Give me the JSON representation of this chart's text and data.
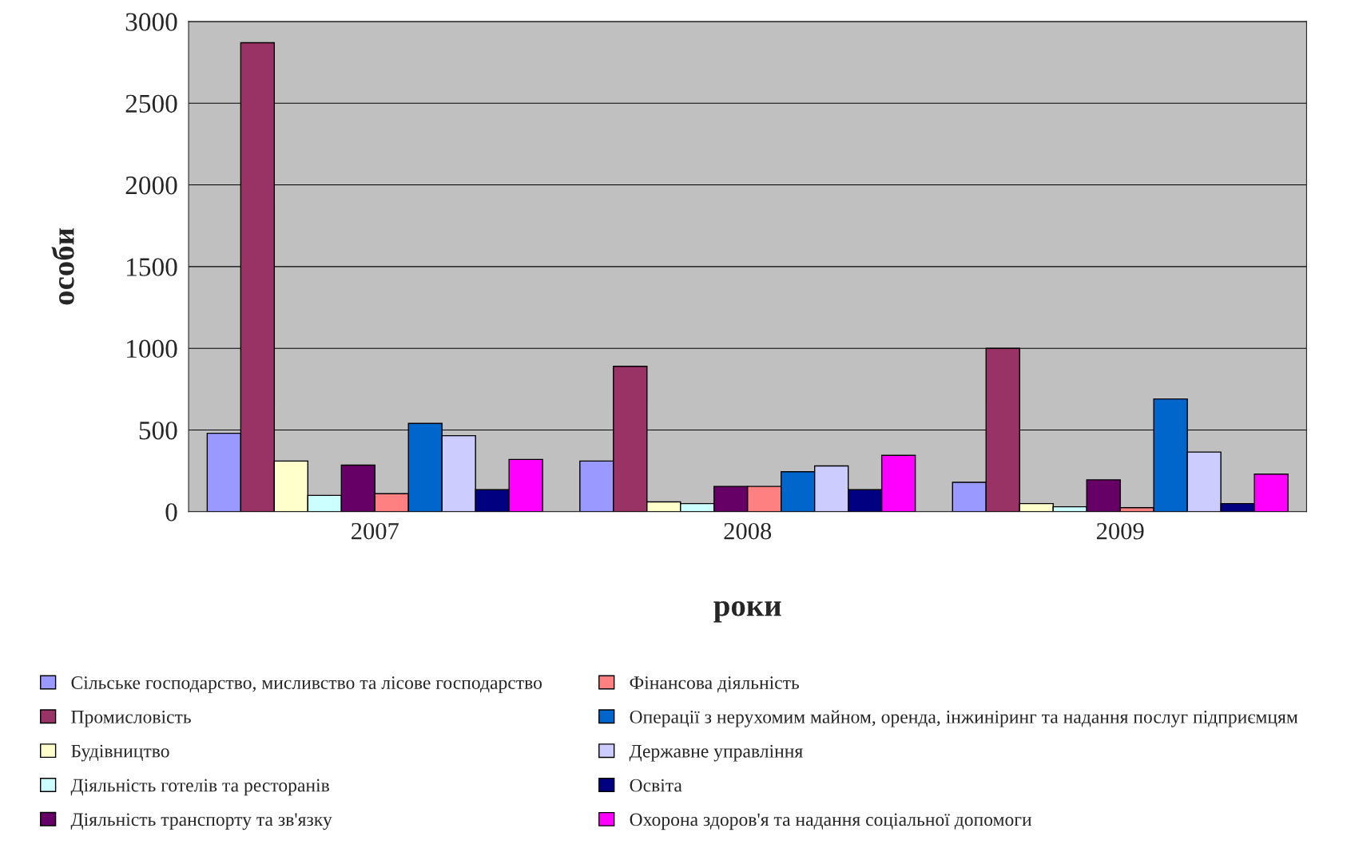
{
  "chart_data": {
    "type": "bar",
    "xlabel": "роки",
    "ylabel": "особи",
    "categories": [
      "2007",
      "2008",
      "2009"
    ],
    "series": [
      {
        "name": "Сільське господарство, мисливство та лісове господарство",
        "color": "#9999ff",
        "values": [
          480,
          310,
          180
        ]
      },
      {
        "name": "Промисловість",
        "color": "#993366",
        "values": [
          2870,
          890,
          1000
        ]
      },
      {
        "name": "Будівництво",
        "color": "#ffffcc",
        "values": [
          310,
          60,
          50
        ]
      },
      {
        "name": "Діяльність готелів та ресторанів",
        "color": "#ccffff",
        "values": [
          100,
          50,
          30
        ]
      },
      {
        "name": "Діяльність транспорту та зв'язку",
        "color": "#660066",
        "values": [
          285,
          155,
          195
        ]
      },
      {
        "name": "Фінансова діяльність",
        "color": "#ff8080",
        "values": [
          110,
          155,
          25
        ]
      },
      {
        "name": "Операції з нерухомим майном, оренда, інжиніринг та надання послуг підприємцям",
        "color": "#0066cc",
        "values": [
          540,
          245,
          690
        ]
      },
      {
        "name": "Державне управління",
        "color": "#ccccff",
        "values": [
          465,
          280,
          365
        ]
      },
      {
        "name": "Освіта",
        "color": "#000080",
        "values": [
          135,
          135,
          50
        ]
      },
      {
        "name": "Охорона здоров'я та надання соціальної допомоги",
        "color": "#ff00ff",
        "values": [
          320,
          345,
          230
        ]
      }
    ],
    "ylim": [
      0,
      3000
    ],
    "yticks": [
      0,
      500,
      1000,
      1500,
      2000,
      2500,
      3000
    ],
    "grid": "y",
    "legend": "bottom"
  }
}
